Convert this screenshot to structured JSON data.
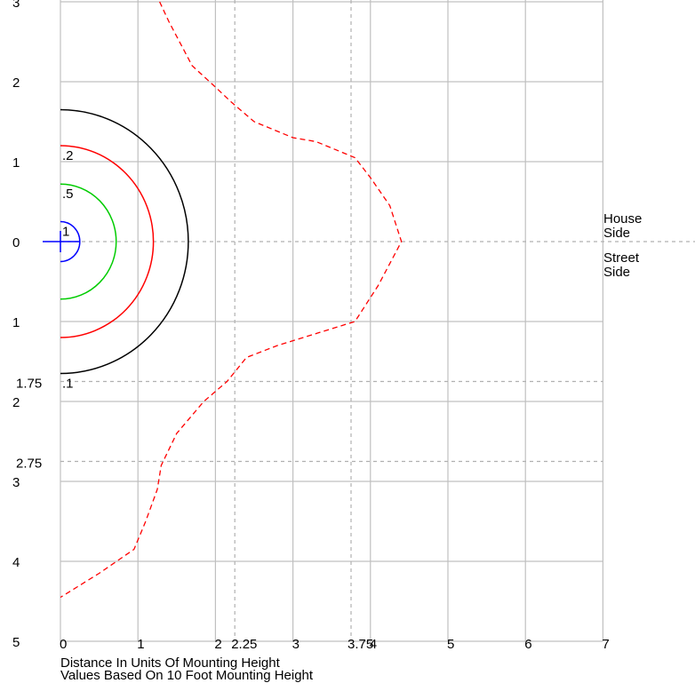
{
  "chart_data": {
    "type": "line",
    "title": "",
    "xlabel": "Distance In Units Of Mounting Height",
    "subtitle": "Values Based On 10 Foot Mounting Height",
    "xlim": [
      0,
      7
    ],
    "ylim_house": [
      0,
      3
    ],
    "ylim_street": [
      0,
      5
    ],
    "x_ticks": [
      "0",
      "1",
      "2",
      "3",
      "4",
      "5",
      "6",
      "7"
    ],
    "x_ref_ticks": [
      "2.25",
      "3.75"
    ],
    "house_y_ticks": [
      "3",
      "2",
      "1",
      "0"
    ],
    "street_y_ticks": [
      "1",
      "2",
      "3",
      "4",
      "5"
    ],
    "street_ref_ticks": [
      "1.75",
      "2.75"
    ],
    "side_labels": [
      "House",
      "Side",
      "Street",
      "Side"
    ],
    "grid": true,
    "isolux_curves": [
      {
        "label": "1",
        "color": "#0000ff",
        "radius": 0.25
      },
      {
        "label": ".5",
        "color": "#00cc00",
        "radius": 0.72
      },
      {
        "label": ".2",
        "color": "#ff0000",
        "radius": 1.2
      },
      {
        "label": ".1",
        "color": "#000000",
        "radius": 1.65
      }
    ],
    "max_candela_trace": {
      "color": "#ff0000",
      "style": "dashed",
      "points": [
        [
          1.28,
          3.0
        ],
        [
          1.4,
          2.75
        ],
        [
          1.7,
          2.2
        ],
        [
          1.98,
          1.95
        ],
        [
          2.2,
          1.75
        ],
        [
          2.5,
          1.5
        ],
        [
          3.0,
          1.3
        ],
        [
          3.3,
          1.25
        ],
        [
          3.8,
          1.05
        ],
        [
          4.0,
          0.8
        ],
        [
          4.25,
          0.45
        ],
        [
          4.4,
          0.0
        ],
        [
          4.1,
          -0.55
        ],
        [
          3.8,
          -1.0
        ],
        [
          3.3,
          -1.15
        ],
        [
          2.8,
          -1.3
        ],
        [
          2.4,
          -1.45
        ],
        [
          2.15,
          -1.75
        ],
        [
          1.85,
          -2.0
        ],
        [
          1.5,
          -2.4
        ],
        [
          1.3,
          -2.8
        ],
        [
          1.25,
          -3.1
        ],
        [
          1.1,
          -3.5
        ],
        [
          0.95,
          -3.85
        ],
        [
          0.5,
          -4.15
        ],
        [
          0.0,
          -4.45
        ]
      ]
    }
  }
}
